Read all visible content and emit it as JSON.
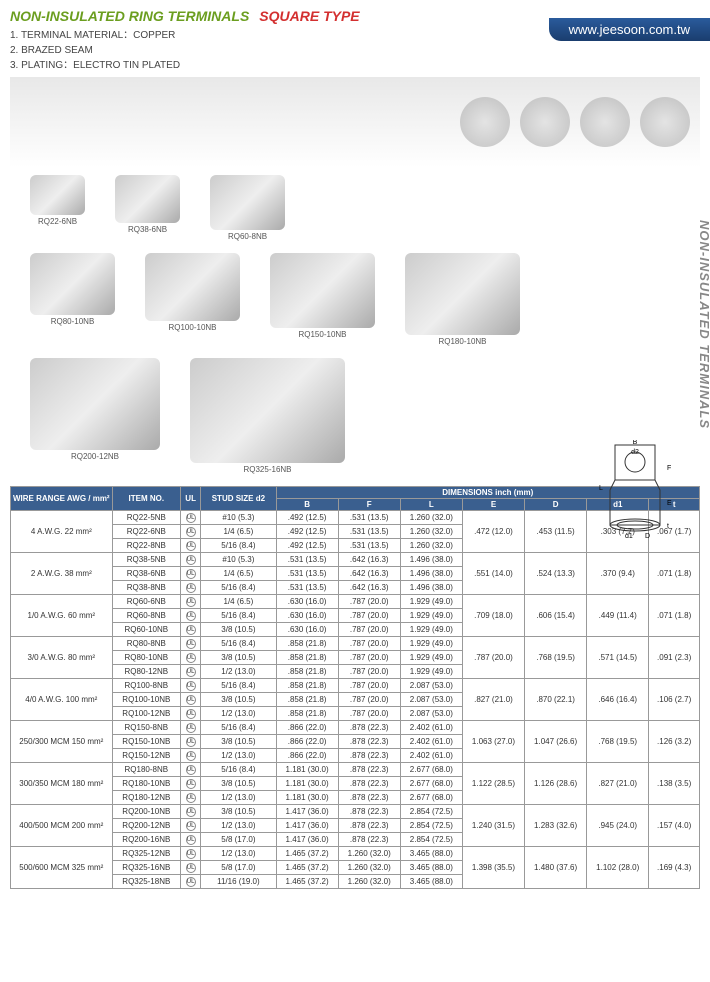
{
  "header": {
    "title_left": "NON-INSULATED RING TERMINALS",
    "title_right": "SQUARE TYPE",
    "url": "www.jeesoon.com.tw",
    "specs": [
      "1. TERMINAL MATERIAL：COPPER",
      "2. BRAZED SEAM",
      "3. PLATING：ELECTRO TIN PLATED"
    ]
  },
  "side_label": "NON-INSULATED TERMINALS",
  "products": {
    "row1": [
      "RQ22-6NB",
      "RQ38-6NB",
      "RQ60-8NB"
    ],
    "row2": [
      "RQ80-10NB",
      "RQ100-10NB",
      "RQ150-10NB",
      "RQ180-10NB"
    ],
    "row3": [
      "RQ200-12NB",
      "RQ325-16NB"
    ]
  },
  "table": {
    "headers": {
      "wire": "WIRE RANGE AWG / mm²",
      "item": "ITEM NO.",
      "ul": "UL",
      "stud": "STUD SIZE d2",
      "dims": "DIMENSIONS inch (mm)",
      "B": "B",
      "F": "F",
      "L": "L",
      "E": "E",
      "D": "D",
      "d1": "d1",
      "t": "t"
    },
    "groups": [
      {
        "wire": "4  A.W.G. 22  mm²",
        "rows": [
          [
            "RQ22-5NB",
            "#10 (5.3)",
            ".492 (12.5)",
            ".531 (13.5)",
            "1.260 (32.0)"
          ],
          [
            "RQ22-6NB",
            "1/4 (6.5)",
            ".492 (12.5)",
            ".531 (13.5)",
            "1.260 (32.0)"
          ],
          [
            "RQ22-8NB",
            "5/16 (8.4)",
            ".492 (12.5)",
            ".531 (13.5)",
            "1.260 (32.0)"
          ]
        ],
        "dims": [
          ".472 (12.0)",
          ".453 (11.5)",
          ".303 (7.7)",
          ".067 (1.7)"
        ]
      },
      {
        "wire": "2  A.W.G. 38  mm²",
        "rows": [
          [
            "RQ38-5NB",
            "#10 (5.3)",
            ".531 (13.5)",
            ".642 (16.3)",
            "1.496 (38.0)"
          ],
          [
            "RQ38-6NB",
            "1/4 (6.5)",
            ".531 (13.5)",
            ".642 (16.3)",
            "1.496 (38.0)"
          ],
          [
            "RQ38-8NB",
            "5/16 (8.4)",
            ".531 (13.5)",
            ".642 (16.3)",
            "1.496 (38.0)"
          ]
        ],
        "dims": [
          ".551 (14.0)",
          ".524 (13.3)",
          ".370 (9.4)",
          ".071 (1.8)"
        ]
      },
      {
        "wire": "1/0  A.W.G. 60  mm²",
        "rows": [
          [
            "RQ60-6NB",
            "1/4 (6.5)",
            ".630 (16.0)",
            ".787 (20.0)",
            "1.929 (49.0)"
          ],
          [
            "RQ60-8NB",
            "5/16 (8.4)",
            ".630 (16.0)",
            ".787 (20.0)",
            "1.929 (49.0)"
          ],
          [
            "RQ60-10NB",
            "3/8 (10.5)",
            ".630 (16.0)",
            ".787 (20.0)",
            "1.929 (49.0)"
          ]
        ],
        "dims": [
          ".709 (18.0)",
          ".606 (15.4)",
          ".449 (11.4)",
          ".071 (1.8)"
        ]
      },
      {
        "wire": "3/0  A.W.G. 80  mm²",
        "rows": [
          [
            "RQ80-8NB",
            "5/16 (8.4)",
            ".858 (21.8)",
            ".787 (20.0)",
            "1.929 (49.0)"
          ],
          [
            "RQ80-10NB",
            "3/8 (10.5)",
            ".858 (21.8)",
            ".787 (20.0)",
            "1.929 (49.0)"
          ],
          [
            "RQ80-12NB",
            "1/2 (13.0)",
            ".858 (21.8)",
            ".787 (20.0)",
            "1.929 (49.0)"
          ]
        ],
        "dims": [
          ".787 (20.0)",
          ".768 (19.5)",
          ".571 (14.5)",
          ".091 (2.3)"
        ]
      },
      {
        "wire": "4/0  A.W.G. 100  mm²",
        "rows": [
          [
            "RQ100-8NB",
            "5/16 (8.4)",
            ".858 (21.8)",
            ".787 (20.0)",
            "2.087 (53.0)"
          ],
          [
            "RQ100-10NB",
            "3/8 (10.5)",
            ".858 (21.8)",
            ".787 (20.0)",
            "2.087 (53.0)"
          ],
          [
            "RQ100-12NB",
            "1/2 (13.0)",
            ".858 (21.8)",
            ".787 (20.0)",
            "2.087 (53.0)"
          ]
        ],
        "dims": [
          ".827 (21.0)",
          ".870 (22.1)",
          ".646 (16.4)",
          ".106 (2.7)"
        ]
      },
      {
        "wire": "250/300 MCM 150  mm²",
        "rows": [
          [
            "RQ150-8NB",
            "5/16 (8.4)",
            ".866 (22.0)",
            ".878 (22.3)",
            "2.402 (61.0)"
          ],
          [
            "RQ150-10NB",
            "3/8 (10.5)",
            ".866 (22.0)",
            ".878 (22.3)",
            "2.402 (61.0)"
          ],
          [
            "RQ150-12NB",
            "1/2 (13.0)",
            ".866 (22.0)",
            ".878 (22.3)",
            "2.402 (61.0)"
          ]
        ],
        "dims": [
          "1.063 (27.0)",
          "1.047 (26.6)",
          ".768 (19.5)",
          ".126 (3.2)"
        ]
      },
      {
        "wire": "300/350 MCM 180  mm²",
        "rows": [
          [
            "RQ180-8NB",
            "5/16 (8.4)",
            "1.181 (30.0)",
            ".878 (22.3)",
            "2.677 (68.0)"
          ],
          [
            "RQ180-10NB",
            "3/8 (10.5)",
            "1.181 (30.0)",
            ".878 (22.3)",
            "2.677 (68.0)"
          ],
          [
            "RQ180-12NB",
            "1/2 (13.0)",
            "1.181 (30.0)",
            ".878 (22.3)",
            "2.677 (68.0)"
          ]
        ],
        "dims": [
          "1.122 (28.5)",
          "1.126 (28.6)",
          ".827 (21.0)",
          ".138 (3.5)"
        ]
      },
      {
        "wire": "400/500 MCM 200  mm²",
        "rows": [
          [
            "RQ200-10NB",
            "3/8 (10.5)",
            "1.417 (36.0)",
            ".878 (22.3)",
            "2.854 (72.5)"
          ],
          [
            "RQ200-12NB",
            "1/2 (13.0)",
            "1.417 (36.0)",
            ".878 (22.3)",
            "2.854 (72.5)"
          ],
          [
            "RQ200-16NB",
            "5/8 (17.0)",
            "1.417 (36.0)",
            ".878 (22.3)",
            "2.854 (72.5)"
          ]
        ],
        "dims": [
          "1.240 (31.5)",
          "1.283 (32.6)",
          ".945 (24.0)",
          ".157 (4.0)"
        ]
      },
      {
        "wire": "500/600 MCM 325  mm²",
        "rows": [
          [
            "RQ325-12NB",
            "1/2 (13.0)",
            "1.465 (37.2)",
            "1.260 (32.0)",
            "3.465 (88.0)"
          ],
          [
            "RQ325-16NB",
            "5/8 (17.0)",
            "1.465 (37.2)",
            "1.260 (32.0)",
            "3.465 (88.0)"
          ],
          [
            "RQ325-18NB",
            "11/16 (19.0)",
            "1.465 (37.2)",
            "1.260 (32.0)",
            "3.465 (88.0)"
          ]
        ],
        "dims": [
          "1.398 (35.5)",
          "1.480 (37.6)",
          "1.102 (28.0)",
          ".169 (4.3)"
        ]
      }
    ]
  },
  "colors": {
    "header_bg": "#3a5f8f",
    "green": "#6b9e1f",
    "red": "#d32f2f",
    "banner": "#2a5b9c"
  }
}
